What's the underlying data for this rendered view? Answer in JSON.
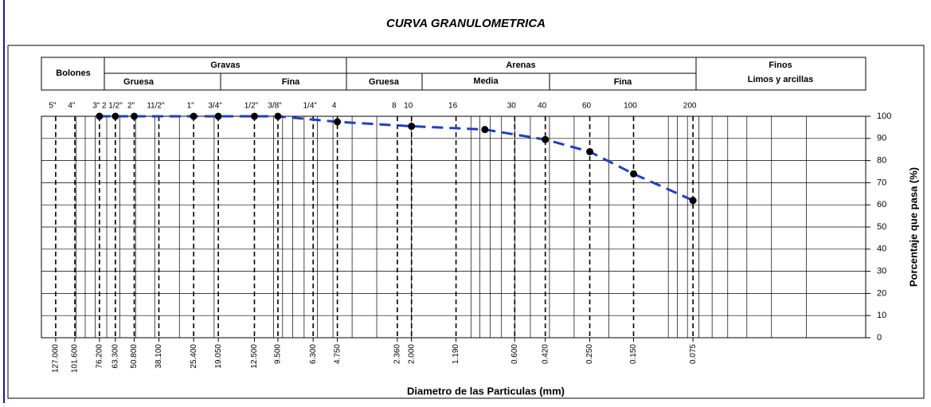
{
  "chart_data": {
    "type": "line",
    "title": "CURVA GRANULOMETRICA",
    "xlabel": "Diametro de las Particulas (mm)",
    "ylabel": "Porcentaje que pasa (%)",
    "classes": {
      "bolones": "Bolones",
      "gravas": "Gravas",
      "gravas_gruesa": "Gruesa",
      "gravas_fina": "Fina",
      "arenas": "Arenas",
      "arenas_gruesa": "Gruesa",
      "arenas_media": "Media",
      "arenas_fina": "Fina",
      "finos": "Finos",
      "finos_sub": "Limos y arcillas"
    },
    "sieves": [
      "5\"",
      "4\"",
      "3\"",
      "2 1/2\"",
      "2\"",
      "11/2\"",
      "1\"",
      "3/4\"",
      "1/2\"",
      "3/8\"",
      "1/4\"",
      "4",
      "8",
      "10",
      "16",
      "30",
      "40",
      "60",
      "100",
      "200"
    ],
    "xticks": [
      {
        "value": 127,
        "label": "127.000"
      },
      {
        "value": 101.6,
        "label": "101.600"
      },
      {
        "value": 76.2,
        "label": "76.200"
      },
      {
        "value": 63.3,
        "label": "63.300"
      },
      {
        "value": 50.8,
        "label": "50.800"
      },
      {
        "value": 38.1,
        "label": "38.100"
      },
      {
        "value": 25.4,
        "label": "25.400"
      },
      {
        "value": 19.05,
        "label": "19.050"
      },
      {
        "value": 12.5,
        "label": "12.500"
      },
      {
        "value": 9.5,
        "label": "9.500"
      },
      {
        "value": 6.3,
        "label": "6.300"
      },
      {
        "value": 4.75,
        "label": "4.750"
      },
      {
        "value": 2.36,
        "label": "2.360"
      },
      {
        "value": 2,
        "label": "2.000"
      },
      {
        "value": 1.19,
        "label": "1.190"
      },
      {
        "value": 0.6,
        "label": "0.600"
      },
      {
        "value": 0.42,
        "label": "0.420"
      },
      {
        "value": 0.25,
        "label": "0.250"
      },
      {
        "value": 0.15,
        "label": "0.150"
      },
      {
        "value": 0.075,
        "label": "0.075"
      }
    ],
    "xgrid": [
      100,
      90,
      80,
      70,
      60,
      50,
      40,
      30,
      20,
      10,
      9,
      8,
      7,
      6,
      5,
      4,
      3,
      2,
      1,
      0.9,
      0.8,
      0.7,
      0.6,
      0.5,
      0.4,
      0.3,
      0.2,
      0.1,
      0.09,
      0.08,
      0.07,
      0.06,
      0.05,
      0.04,
      0.03,
      0.02
    ],
    "xlim": [
      150,
      0.01
    ],
    "xscale": "log",
    "ylim": [
      0,
      100
    ],
    "yticks": [
      0,
      10,
      20,
      30,
      40,
      50,
      60,
      70,
      80,
      90,
      100
    ],
    "grid": true,
    "series": [
      {
        "color": "#1f3fbf",
        "x": [
          76.2,
          63.3,
          50.8,
          25.4,
          19.05,
          12.5,
          9.5,
          4.75,
          2,
          0.85,
          0.42,
          0.25,
          0.15,
          0.075
        ],
        "values": [
          100,
          100,
          100,
          100,
          100,
          100,
          100,
          97.5,
          95.5,
          94,
          89.5,
          84,
          74,
          62
        ]
      }
    ]
  }
}
